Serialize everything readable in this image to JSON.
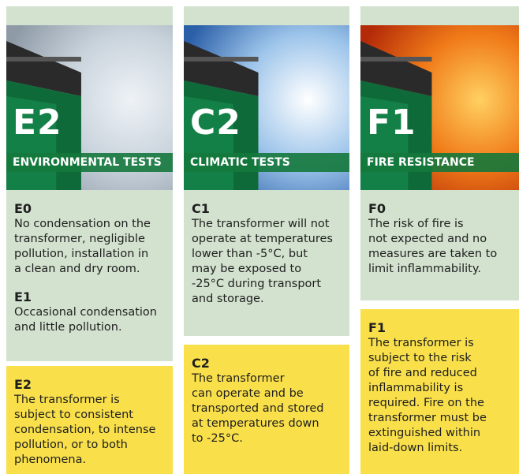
{
  "columns": [
    {
      "code": "E2",
      "label": "ENVIRONMENTAL TESTS",
      "items": [
        {
          "code": "E0",
          "lines": [
            "No condensation on the",
            "transformer, negligible",
            "pollution, installation in",
            "a clean and dry room."
          ]
        },
        {
          "code": "E1",
          "lines": [
            "Occasional condensation",
            "and little pollution."
          ]
        }
      ],
      "highlight": {
        "code": "E2",
        "lines": [
          "The transformer is",
          "subject to consistent",
          "condensation, to intense",
          "pollution, or to both",
          "phenomena."
        ]
      }
    },
    {
      "code": "C2",
      "label": "CLIMATIC TESTS",
      "items": [
        {
          "code": "C1",
          "lines": [
            "The transformer will not",
            "operate at temperatures",
            "lower than -5°C, but",
            "may be exposed to",
            "-25°C during transport",
            "and storage."
          ]
        }
      ],
      "highlight": {
        "code": "C2",
        "lines": [
          "The transformer",
          "can operate and be",
          "transported and stored",
          "at temperatures down",
          "to -25°C."
        ]
      }
    },
    {
      "code": "F1",
      "label": "FIRE RESISTANCE",
      "items": [
        {
          "code": "F0",
          "lines": [
            "The risk of fire is",
            "not expected and no",
            "measures are taken to",
            "limit inflammability."
          ]
        }
      ],
      "highlight": {
        "code": "F1",
        "lines": [
          "The transformer is",
          "subject to the risk",
          "of fire and reduced",
          "inflammability is",
          "required. Fire on the",
          "transformer must be",
          "extinguished within",
          "laid-down limits."
        ]
      }
    }
  ]
}
